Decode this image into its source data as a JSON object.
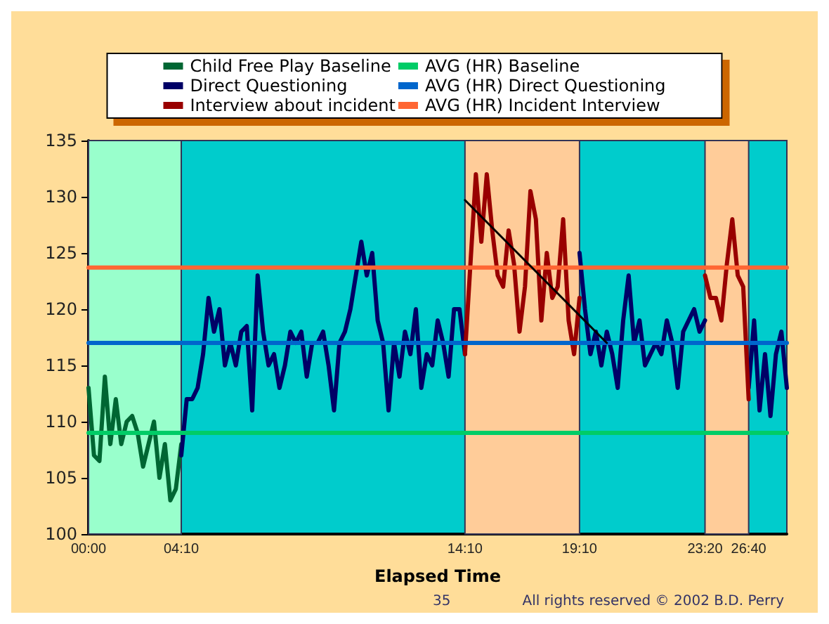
{
  "chart_data": {
    "type": "line",
    "xlabel": "Elapsed Time",
    "annotations": [
      "35",
      "All rights reserved © 2002 B.D. Perry"
    ],
    "categories": [
      "00:00",
      null,
      null,
      null,
      null,
      null,
      null,
      null,
      null,
      null,
      null,
      null,
      null,
      null,
      null,
      null,
      null,
      "04:10",
      null,
      null,
      null,
      null,
      null,
      null,
      null,
      null,
      null,
      null,
      null,
      null,
      null,
      null,
      null,
      null,
      null,
      null,
      null,
      null,
      null,
      null,
      null,
      null,
      null,
      null,
      null,
      null,
      null,
      null,
      null,
      null,
      null,
      null,
      null,
      null,
      null,
      null,
      null,
      null,
      null,
      null,
      null,
      null,
      null,
      null,
      null,
      null,
      null,
      null,
      null,
      "14:10",
      null,
      null,
      null,
      null,
      null,
      null,
      null,
      null,
      null,
      null,
      null,
      null,
      null,
      null,
      null,
      null,
      null,
      null,
      null,
      null,
      "19:10",
      null,
      null,
      null,
      null,
      null,
      null,
      null,
      null,
      null,
      null,
      null,
      null,
      null,
      null,
      null,
      null,
      null,
      null,
      null,
      null,
      null,
      null,
      "23:20",
      null,
      null,
      null,
      null,
      null,
      null,
      null,
      "26:40",
      null,
      null,
      null,
      null,
      null,
      null,
      null
    ],
    "series": [
      {
        "name": "Child Free Play Baseline",
        "color": "#006633",
        "values": [
          113,
          107,
          106.5,
          114,
          108,
          112,
          108,
          110,
          110.5,
          109,
          106,
          108,
          110,
          105,
          108,
          103,
          104,
          108,
          null,
          null,
          null,
          null,
          null,
          null,
          null,
          null,
          null,
          null,
          null,
          null,
          null,
          null,
          null,
          null,
          null,
          null,
          null,
          null,
          null,
          null,
          null,
          null,
          null,
          null,
          null,
          null,
          null,
          null,
          null,
          null,
          null,
          null,
          null,
          null,
          null,
          null,
          null,
          null,
          null,
          null,
          null,
          null,
          null,
          null,
          null,
          null,
          null,
          null,
          null,
          null,
          null,
          null,
          null,
          null,
          null,
          null,
          null,
          null,
          null,
          null,
          null,
          null,
          null,
          null,
          null,
          null,
          null,
          null,
          null,
          null,
          null,
          null,
          null,
          null,
          null,
          null,
          null,
          null,
          null,
          null,
          null,
          null,
          null,
          null,
          null,
          null,
          null,
          null,
          null,
          null,
          null,
          null,
          null,
          null,
          null,
          null,
          null,
          null,
          null,
          null,
          null,
          null,
          null,
          null,
          null,
          null,
          null,
          null,
          null
        ]
      },
      {
        "name": "Direct Questioning",
        "color": "#000066",
        "values": [
          null,
          null,
          null,
          null,
          null,
          null,
          null,
          null,
          null,
          null,
          null,
          null,
          null,
          null,
          null,
          null,
          null,
          107,
          112,
          112,
          113,
          116,
          121,
          118,
          120,
          115,
          117,
          115,
          118,
          118.5,
          111,
          123,
          118,
          115,
          116,
          113,
          115,
          118,
          117,
          118,
          114,
          117,
          117,
          118,
          115,
          111,
          117,
          118,
          120,
          123,
          126,
          123,
          125,
          119,
          117,
          111,
          117,
          114,
          118,
          116,
          120,
          113,
          116,
          115,
          119,
          117,
          114,
          120,
          120,
          116,
          null,
          null,
          null,
          null,
          null,
          null,
          null,
          null,
          null,
          null,
          null,
          null,
          null,
          null,
          null,
          null,
          null,
          null,
          null,
          null,
          125,
          120,
          116,
          118,
          115,
          118,
          116,
          113,
          119,
          123,
          117,
          119,
          115,
          116,
          117,
          116,
          119,
          117,
          113,
          118,
          119,
          120,
          118,
          119,
          null,
          null,
          null,
          null,
          null,
          null,
          null,
          113,
          119,
          111,
          116,
          110.5,
          116,
          118,
          113
        ]
      },
      {
        "name": "Interview about incident",
        "color": "#990000",
        "values": [
          null,
          null,
          null,
          null,
          null,
          null,
          null,
          null,
          null,
          null,
          null,
          null,
          null,
          null,
          null,
          null,
          null,
          null,
          null,
          null,
          null,
          null,
          null,
          null,
          null,
          null,
          null,
          null,
          null,
          null,
          null,
          null,
          null,
          null,
          null,
          null,
          null,
          null,
          null,
          null,
          null,
          null,
          null,
          null,
          null,
          null,
          null,
          null,
          null,
          null,
          null,
          null,
          null,
          null,
          null,
          null,
          null,
          null,
          null,
          null,
          null,
          null,
          null,
          null,
          null,
          null,
          null,
          null,
          null,
          116,
          124,
          132,
          126,
          132,
          127,
          123,
          122,
          127,
          124,
          118,
          122,
          130.5,
          128,
          119,
          125,
          121,
          122,
          128,
          119,
          116,
          121,
          null,
          null,
          null,
          null,
          null,
          null,
          null,
          null,
          null,
          null,
          null,
          null,
          null,
          null,
          null,
          null,
          null,
          null,
          null,
          null,
          null,
          null,
          123,
          121,
          121,
          119,
          124,
          128,
          123,
          122,
          112,
          null,
          null,
          null,
          null,
          null,
          null,
          null
        ]
      },
      {
        "name": "AVG (HR) Baseline",
        "color": "#00cc66",
        "values": [
          109,
          109,
          109,
          109,
          109,
          109,
          109,
          109,
          109,
          109,
          109,
          109,
          109,
          109,
          109,
          109,
          109,
          109,
          109,
          109,
          109,
          109,
          109,
          109,
          109,
          109,
          109,
          109,
          109,
          109,
          109,
          109,
          109,
          109,
          109,
          109,
          109,
          109,
          109,
          109,
          109,
          109,
          109,
          109,
          109,
          109,
          109,
          109,
          109,
          109,
          109,
          109,
          109,
          109,
          109,
          109,
          109,
          109,
          109,
          109,
          109,
          109,
          109,
          109,
          109,
          109,
          109,
          109,
          109,
          109,
          109,
          109,
          109,
          109,
          109,
          109,
          109,
          109,
          109,
          109,
          109,
          109,
          109,
          109,
          109,
          109,
          109,
          109,
          109,
          109,
          109,
          109,
          109,
          109,
          109,
          109,
          109,
          109,
          109,
          109,
          109,
          109,
          109,
          109,
          109,
          109,
          109,
          109,
          109,
          109,
          109,
          109,
          109,
          109,
          109,
          109,
          109,
          109,
          109,
          109,
          109,
          109,
          109,
          109,
          109,
          109,
          109,
          109,
          109
        ]
      },
      {
        "name": "AVG (HR) Direct Questioning",
        "color": "#0066cc",
        "values": [
          117,
          117,
          117,
          117,
          117,
          117,
          117,
          117,
          117,
          117,
          117,
          117,
          117,
          117,
          117,
          117,
          117,
          117,
          117,
          117,
          117,
          117,
          117,
          117,
          117,
          117,
          117,
          117,
          117,
          117,
          117,
          117,
          117,
          117,
          117,
          117,
          117,
          117,
          117,
          117,
          117,
          117,
          117,
          117,
          117,
          117,
          117,
          117,
          117,
          117,
          117,
          117,
          117,
          117,
          117,
          117,
          117,
          117,
          117,
          117,
          117,
          117,
          117,
          117,
          117,
          117,
          117,
          117,
          117,
          117,
          117,
          117,
          117,
          117,
          117,
          117,
          117,
          117,
          117,
          117,
          117,
          117,
          117,
          117,
          117,
          117,
          117,
          117,
          117,
          117,
          117,
          117,
          117,
          117,
          117,
          117,
          117,
          117,
          117,
          117,
          117,
          117,
          117,
          117,
          117,
          117,
          117,
          117,
          117,
          117,
          117,
          117,
          117,
          117,
          117,
          117,
          117,
          117,
          117,
          117,
          117,
          117,
          117,
          117,
          117,
          117,
          117,
          117,
          117
        ]
      },
      {
        "name": "AVG (HR) Incident Interview",
        "color": "#ff6633",
        "values": [
          123.7,
          123.7,
          123.7,
          123.7,
          123.7,
          123.7,
          123.7,
          123.7,
          123.7,
          123.7,
          123.7,
          123.7,
          123.7,
          123.7,
          123.7,
          123.7,
          123.7,
          123.7,
          123.7,
          123.7,
          123.7,
          123.7,
          123.7,
          123.7,
          123.7,
          123.7,
          123.7,
          123.7,
          123.7,
          123.7,
          123.7,
          123.7,
          123.7,
          123.7,
          123.7,
          123.7,
          123.7,
          123.7,
          123.7,
          123.7,
          123.7,
          123.7,
          123.7,
          123.7,
          123.7,
          123.7,
          123.7,
          123.7,
          123.7,
          123.7,
          123.7,
          123.7,
          123.7,
          123.7,
          123.7,
          123.7,
          123.7,
          123.7,
          123.7,
          123.7,
          123.7,
          123.7,
          123.7,
          123.7,
          123.7,
          123.7,
          123.7,
          123.7,
          123.7,
          123.7,
          123.7,
          123.7,
          123.7,
          123.7,
          123.7,
          123.7,
          123.7,
          123.7,
          123.7,
          123.7,
          123.7,
          123.7,
          123.7,
          123.7,
          123.7,
          123.7,
          123.7,
          123.7,
          123.7,
          123.7,
          123.7,
          123.7,
          123.7,
          123.7,
          123.7,
          123.7,
          123.7,
          123.7,
          123.7,
          123.7,
          123.7,
          123.7,
          123.7,
          123.7,
          123.7,
          123.7,
          123.7,
          123.7,
          123.7,
          123.7,
          123.7,
          123.7,
          123.7,
          123.7,
          123.7,
          123.7,
          123.7,
          123.7,
          123.7,
          123.7,
          123.7,
          123.7,
          123.7,
          123.7,
          123.7,
          123.7,
          123.7,
          123.7,
          123.7
        ]
      },
      {
        "type": "line",
        "color": "#000000",
        "values": [
          null,
          null,
          null,
          null,
          null,
          null,
          null,
          null,
          null,
          null,
          null,
          null,
          null,
          null,
          null,
          null,
          null,
          null,
          null,
          null,
          null,
          null,
          null,
          null,
          null,
          null,
          null,
          null,
          null,
          null,
          null,
          null,
          null,
          null,
          null,
          null,
          null,
          null,
          null,
          null,
          null,
          null,
          null,
          null,
          null,
          null,
          null,
          null,
          null,
          null,
          null,
          null,
          null,
          null,
          null,
          null,
          null,
          null,
          null,
          null,
          null,
          null,
          null,
          null,
          null,
          null,
          null,
          null,
          null,
          129.7,
          null,
          null,
          null,
          null,
          null,
          null,
          null,
          null,
          null,
          null,
          null,
          null,
          null,
          null,
          null,
          null,
          null,
          null,
          null,
          null,
          null,
          null,
          null,
          null,
          null,
          117,
          null,
          null,
          null,
          null,
          null,
          null,
          null,
          null,
          null,
          null,
          null,
          null,
          null,
          null,
          null,
          null,
          null,
          null,
          null,
          null,
          null,
          null,
          null,
          null,
          null,
          null,
          null,
          null,
          null,
          null,
          null,
          null,
          null
        ]
      }
    ],
    "bands": [
      {
        "axis": "x",
        "from": "00:00",
        "to": "04:10",
        "color": "#99ffcc"
      },
      {
        "axis": "x",
        "from": "14:10",
        "to": "19:10",
        "color": "#ffcc99"
      },
      {
        "axis": "x",
        "from": "23:20",
        "to": "26:40",
        "color": "#ffcc99"
      }
    ],
    "ylim": [
      100,
      135
    ],
    "yticks": [
      100,
      105,
      110,
      115,
      120,
      125,
      130,
      135
    ],
    "grid": false,
    "legend": "top",
    "marker": "none",
    "line_style": "solid"
  }
}
